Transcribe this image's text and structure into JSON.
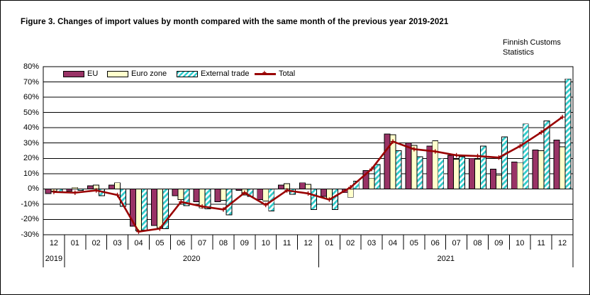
{
  "title": "Figure 3. Changes of import values by month compared with the same month of the previous year 2019-2021",
  "source": {
    "line1": "Finnish Customs",
    "line2": "Statistics"
  },
  "colors": {
    "eu_bar": "#993366",
    "euro_zone_bar": "#FFFFCC",
    "external_trade_hatch": "#33CCCC",
    "total_line": "#990000",
    "grid": "#000000"
  },
  "chart_data": {
    "type": "bar",
    "subtype": "grouped bars with overlaid line series",
    "title": "Figure 3. Changes of import values by month compared with the same month of the previous year 2019-2021",
    "xlabel": "",
    "ylabel": "",
    "ylim": [
      -30,
      80
    ],
    "ytick_step": 10,
    "grid": true,
    "legend_position": "top-left-inside",
    "ytick_labels": [
      "80%",
      "70%",
      "60%",
      "50%",
      "40%",
      "30%",
      "20%",
      "10%",
      "0%",
      "-10%",
      "-20%",
      "-30%"
    ],
    "categories": [
      "12",
      "01",
      "02",
      "03",
      "04",
      "05",
      "06",
      "07",
      "08",
      "09",
      "10",
      "11",
      "12",
      "01",
      "02",
      "03",
      "04",
      "05",
      "06",
      "07",
      "08",
      "09",
      "10",
      "11",
      "12"
    ],
    "year_groups": [
      {
        "label": "2019",
        "span": 1
      },
      {
        "label": "2020",
        "span": 12
      },
      {
        "label": "2021",
        "span": 12
      }
    ],
    "series": [
      {
        "name": "EU",
        "type": "bar",
        "color": "#993366",
        "values": [
          -3,
          -1.5,
          2,
          2.5,
          -24.5,
          -24,
          -4.5,
          -8.5,
          -8.5,
          -1,
          -7,
          2.5,
          4,
          -5,
          -2.5,
          12,
          36,
          30,
          28,
          22,
          20,
          13,
          17.5,
          25.5,
          32
        ]
      },
      {
        "name": "Euro zone",
        "type": "bar",
        "color": "#FFFFCC",
        "values": [
          -1.5,
          1,
          2.5,
          4,
          -27.5,
          -25.5,
          -7,
          -12.5,
          -7.5,
          -4,
          -8,
          3.5,
          3,
          -6.5,
          -5.5,
          7,
          35.5,
          28.5,
          31.5,
          19.5,
          19.5,
          9,
          17,
          25,
          27.5
        ]
      },
      {
        "name": "External trade",
        "type": "bar",
        "color": "#33CCCC",
        "pattern": "diagonal-hatch",
        "values": [
          -2,
          -1,
          -4.5,
          -11.5,
          -27,
          -26,
          -11,
          -13,
          -17,
          -5,
          -14.5,
          -3.5,
          -13.5,
          -13.5,
          5,
          16,
          25,
          21,
          20,
          21,
          28,
          34,
          42.5,
          44.5,
          72
        ]
      },
      {
        "name": "Total",
        "type": "line",
        "color": "#990000",
        "marker": "plus",
        "values": [
          -2,
          -2.5,
          -1,
          -4,
          -28,
          -26,
          -8.5,
          -11.5,
          -13.5,
          -2.5,
          -10.5,
          -1,
          -3,
          -7,
          1,
          13,
          31,
          26,
          24.5,
          22,
          21.5,
          20.5,
          28,
          37,
          47
        ]
      }
    ]
  }
}
